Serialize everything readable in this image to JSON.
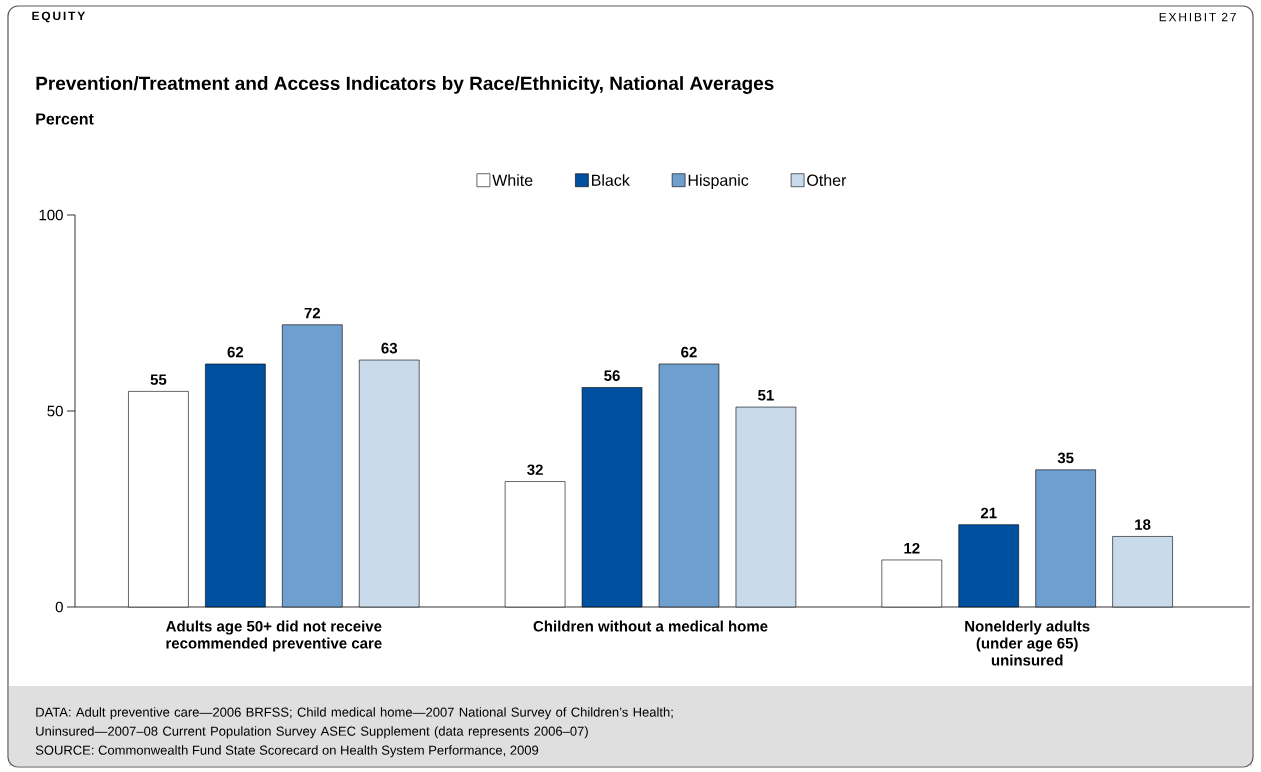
{
  "chart_data": {
    "type": "bar",
    "title": "Prevention/Treatment and Access Indicators by Race/Ethnicity, National Averages",
    "subtitle": "Percent",
    "categories": [
      "Adults age 50+ did not receive recommended preventive care",
      "Children without a medical home",
      "Nonelderly adults (under age 65) uninsured"
    ],
    "series": [
      {
        "name": "White",
        "color": "#ffffff",
        "values": [
          55,
          32,
          12
        ]
      },
      {
        "name": "Black",
        "color": "#0050a0",
        "values": [
          62,
          56,
          21
        ]
      },
      {
        "name": "Hispanic",
        "color": "#6f9fce",
        "values": [
          72,
          62,
          35
        ]
      },
      {
        "name": "Other",
        "color": "#c9dbeb",
        "values": [
          63,
          51,
          18
        ]
      }
    ],
    "ylim": [
      0,
      100
    ],
    "yticks": [
      0,
      50,
      100
    ],
    "data_labels": true,
    "legend": "top",
    "annotations": [
      "EQUITY",
      "EXHIBIT 27",
      "DATA: Adult preventive care—2006 BRFSS; Child medical home—2007 National Survey of Children’s Health; Uninsured—2007–08 Current Population Survey ASEC Supplement (data represents 2006–07)",
      "SOURCE: Commonwealth Fund State Scorecard on Health System Performance, 2009"
    ]
  }
}
